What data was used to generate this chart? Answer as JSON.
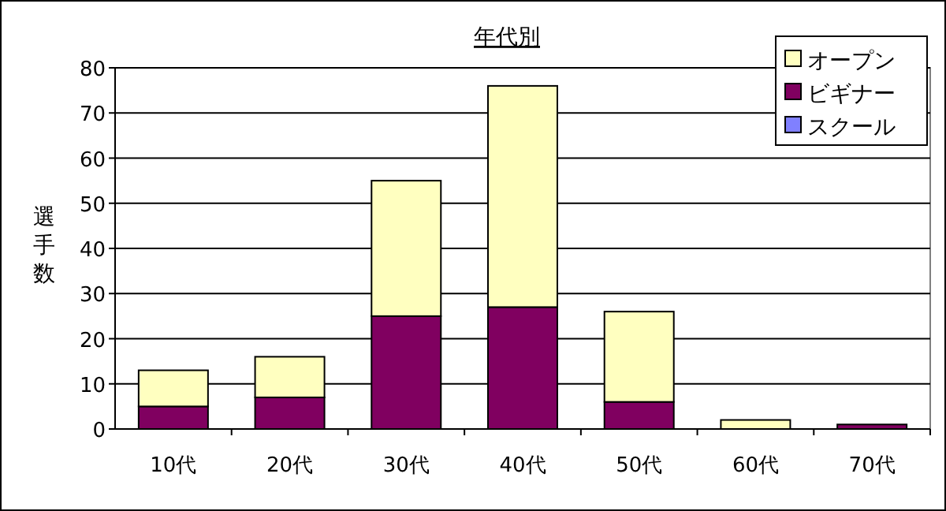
{
  "chart_data": {
    "type": "bar",
    "title": "年代別",
    "ylabel": "選手数",
    "stacked": true,
    "grid": "y",
    "legend": "top right",
    "categories": [
      "10代",
      "20代",
      "30代",
      "40代",
      "50代",
      "60代",
      "70代"
    ],
    "series": [
      {
        "name": "スクール",
        "color": "#8080ff",
        "values": [
          0,
          0,
          0,
          0,
          0,
          0,
          0
        ]
      },
      {
        "name": "ビギナー",
        "color": "#800060",
        "values": [
          5,
          7,
          25,
          27,
          6,
          0,
          1
        ]
      },
      {
        "name": "オープン",
        "color": "#ffffc0",
        "values": [
          8,
          9,
          30,
          49,
          20,
          2,
          0
        ]
      }
    ],
    "ylim": [
      0,
      80
    ],
    "yticks": [
      0,
      10,
      20,
      30,
      40,
      50,
      60,
      70,
      80
    ]
  }
}
